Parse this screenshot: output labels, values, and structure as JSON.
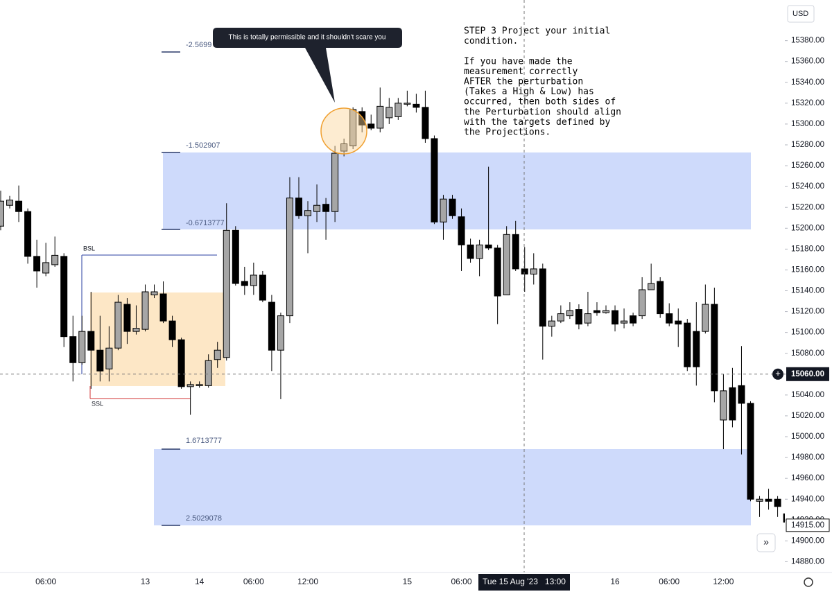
{
  "chart_data": {
    "type": "candlestick",
    "currency": "USD",
    "categories": [
      null,
      null,
      null,
      null,
      null,
      "06:00",
      null,
      null,
      null,
      null,
      null,
      null,
      null,
      null,
      null,
      null,
      "13",
      null,
      null,
      null,
      null,
      null,
      "14",
      null,
      null,
      null,
      null,
      null,
      "06:00",
      null,
      null,
      null,
      null,
      null,
      "12:00",
      null,
      null,
      null,
      null,
      null,
      null,
      null,
      null,
      null,
      null,
      "15",
      null,
      null,
      null,
      null,
      null,
      "06:00",
      null,
      null,
      null,
      null,
      null,
      null,
      null,
      null,
      null,
      null,
      null,
      null,
      null,
      null,
      null,
      null,
      "16",
      null,
      null,
      null,
      null,
      null,
      "06:00",
      null,
      null,
      null,
      null,
      null,
      "12:00",
      null,
      null,
      null,
      null,
      null,
      null,
      null
    ],
    "series": [
      {
        "up_color": "#a6a6a6",
        "down_color": "#000000",
        "open": [
          15202,
          15222,
          15226,
          15216,
          15173,
          15157,
          15165,
          15173,
          15096,
          15071,
          15101,
          15083,
          15065,
          15085,
          15127,
          15101,
          15103,
          15136,
          15137,
          15111,
          15093,
          15048,
          15049,
          15049,
          15074,
          15076,
          15198,
          15149,
          15145,
          15155,
          15129,
          15083,
          15116,
          15229,
          15212,
          15216,
          15223,
          15216,
          15274,
          15279,
          15312,
          15300,
          15296,
          15306,
          15307,
          15319,
          15319,
          15316,
          15286,
          15206,
          15228,
          15211,
          15184,
          15171,
          15184,
          15181,
          15136,
          15194,
          15161,
          15156,
          15161,
          15106,
          15111,
          15116,
          15122,
          15109,
          15121,
          15119,
          15121,
          15109,
          15116,
          15116,
          15141,
          15149,
          15118,
          15111,
          15109,
          15101,
          15101,
          15127,
          15016,
          15047,
          15049,
          15032,
          14938,
          14940,
          14940,
          14926
        ],
        "high": [
          15236,
          15231,
          15241,
          15219,
          15189,
          15186,
          15192,
          15176,
          15116,
          15116,
          15139,
          15116,
          15106,
          15136,
          15133,
          15126,
          15146,
          15146,
          15149,
          15116,
          15095,
          15053,
          15053,
          15079,
          15091,
          15224,
          15202,
          15163,
          15167,
          15159,
          15136,
          15119,
          15249,
          15249,
          15226,
          15242,
          15229,
          15279,
          15286,
          15316,
          15316,
          15309,
          15335,
          15325,
          15325,
          15332,
          15329,
          15332,
          15289,
          15232,
          15232,
          15219,
          15190,
          15189,
          15259,
          15184,
          15202,
          15207,
          15182,
          15176,
          15166,
          15116,
          15126,
          15129,
          15127,
          15139,
          15129,
          15126,
          15126,
          15123,
          15119,
          15153,
          15166,
          15153,
          15128,
          15123,
          15113,
          15129,
          15146,
          15143,
          15060,
          15066,
          15087,
          15034,
          14943,
          14950,
          14943,
          14927
        ],
        "low": [
          15198,
          15219,
          15206,
          15166,
          15143,
          15154,
          15163,
          15086,
          15053,
          15069,
          15046,
          15053,
          15053,
          15083,
          15089,
          15098,
          15101,
          15133,
          15109,
          15086,
          15046,
          15021,
          15047,
          15047,
          15066,
          15073,
          15145,
          15136,
          15136,
          15129,
          15063,
          15036,
          15109,
          15209,
          15176,
          15206,
          15189,
          15206,
          15269,
          15276,
          15292,
          15294,
          15292,
          15300,
          15304,
          15317,
          15311,
          15282,
          15204,
          15189,
          15209,
          15159,
          15167,
          15154,
          15179,
          15108,
          15136,
          15159,
          15139,
          15146,
          15074,
          15096,
          15109,
          15113,
          15103,
          15106,
          15116,
          15118,
          15101,
          15104,
          15106,
          15113,
          15141,
          15114,
          15106,
          15086,
          15063,
          15049,
          15099,
          15033,
          14988,
          15009,
          14983,
          14938,
          14923,
          14930,
          14923,
          14914
        ],
        "close": [
          15226,
          15227,
          15216,
          15173,
          15159,
          15167,
          15174,
          15096,
          15071,
          15101,
          15083,
          15063,
          15085,
          15129,
          15101,
          15104,
          15139,
          15139,
          15111,
          15093,
          15048,
          15050,
          15050,
          15073,
          15083,
          15198,
          15147,
          15145,
          15155,
          15131,
          15083,
          15116,
          15229,
          15212,
          15217,
          15222,
          15216,
          15272,
          15281,
          15314,
          15299,
          15296,
          15317,
          15316,
          15320,
          15320,
          15316,
          15286,
          15206,
          15228,
          15212,
          15184,
          15171,
          15184,
          15181,
          15135,
          15194,
          15161,
          15156,
          15161,
          15106,
          15111,
          15118,
          15121,
          15108,
          15118,
          15119,
          15121,
          15108,
          15111,
          15109,
          15141,
          15147,
          15118,
          15109,
          15108,
          15067,
          15067,
          15127,
          15044,
          15044,
          15016,
          15032,
          14940,
          14940,
          14938,
          14933,
          14918
        ]
      }
    ],
    "ylim": [
      14867,
      15419
    ],
    "yticks": [
      {
        "value": 14880,
        "label": "14880.00"
      },
      {
        "value": 14900,
        "label": "14900.00"
      },
      {
        "value": 14920,
        "label": "14920.00"
      },
      {
        "value": 14940,
        "label": "14940.00"
      },
      {
        "value": 14960,
        "label": "14960.00"
      },
      {
        "value": 14980,
        "label": "14980.00"
      },
      {
        "value": 15000,
        "label": "15000.00"
      },
      {
        "value": 15020,
        "label": "15020.00"
      },
      {
        "value": 15040,
        "label": "15040.00"
      },
      {
        "value": 15060,
        "label": "15060.00"
      },
      {
        "value": 15080,
        "label": "15080.00"
      },
      {
        "value": 15100,
        "label": "15100.00"
      },
      {
        "value": 15120,
        "label": "15120.00"
      },
      {
        "value": 15140,
        "label": "15140.00"
      },
      {
        "value": 15160,
        "label": "15160.00"
      },
      {
        "value": 15180,
        "label": "15180.00"
      },
      {
        "value": 15200,
        "label": "15200.00"
      },
      {
        "value": 15220,
        "label": "15220.00"
      },
      {
        "value": 15240,
        "label": "15240.00"
      },
      {
        "value": 15260,
        "label": "15260.00"
      },
      {
        "value": 15280,
        "label": "15280.00"
      },
      {
        "value": 15300,
        "label": "15300.00"
      },
      {
        "value": 15320,
        "label": "15320.00"
      },
      {
        "value": 15340,
        "label": "15340.00"
      },
      {
        "value": 15360,
        "label": "15360.00"
      },
      {
        "value": 15380,
        "label": "15380.00"
      }
    ],
    "grid": false,
    "crosshair": {
      "x_label": "Tue 15 Aug '23   13:00",
      "price": {
        "value": 15060,
        "label": "15060.00"
      }
    },
    "last_price": {
      "value": 14915,
      "label": "14915.00"
    },
    "annotations": {
      "fib_levels": [
        "-2.5699",
        "-1.502907",
        "-0.6713777",
        "1.6713777",
        "2.5029078"
      ],
      "bsl": "BSL",
      "ssl": "SSL",
      "callout": "This is totally permissible and it shouldn't scare you",
      "note_lines": [
        "STEP 3 Project your initial",
        "condition.",
        "",
        "If you have made the",
        "measurement correctly",
        "AFTER the perturbation",
        "(Takes a High & Low) has",
        "occurred, then both sides of",
        "the Perturbation should align",
        "with the targets defined by",
        "the Projections."
      ]
    }
  }
}
